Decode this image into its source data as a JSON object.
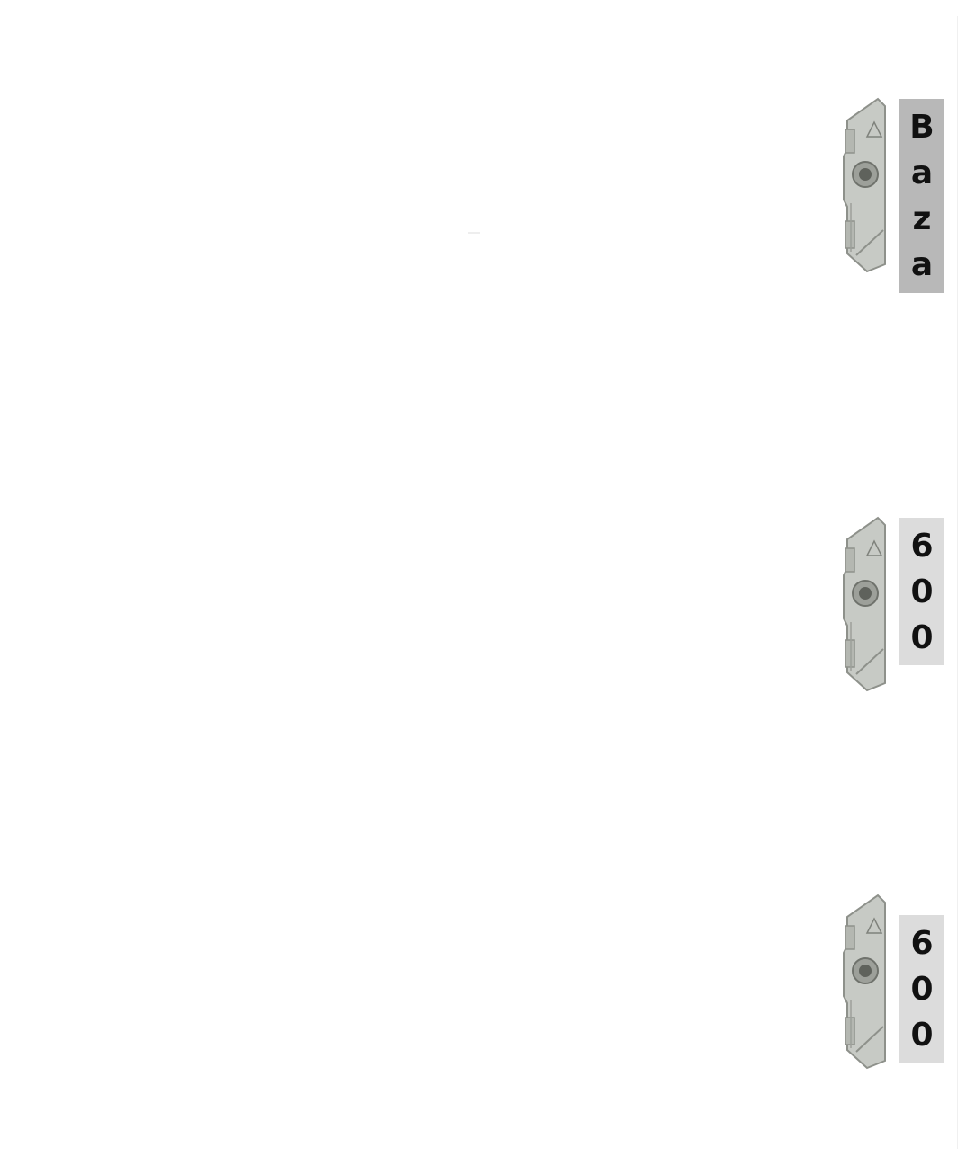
{
  "colors": {
    "background": "#ffffff",
    "label_dark_bg": "#b8b8b8",
    "label_light_bg": "#dcdcdc",
    "label_text": "#111111",
    "metal_base": "#c7cac5",
    "metal_shadow": "#8e918b"
  },
  "keepers": [
    {
      "icon": "window-keeper-icon",
      "label_bg": "#b8b8b8",
      "label_chars": [
        "B",
        "a",
        "z",
        "a"
      ]
    },
    {
      "icon": "window-keeper-icon",
      "label_bg": "#dcdcdc",
      "label_chars": [
        "6",
        "0",
        "0"
      ]
    },
    {
      "icon": "window-keeper-icon",
      "label_bg": "#dcdcdc",
      "label_chars": [
        "6",
        "0",
        "0"
      ]
    }
  ]
}
